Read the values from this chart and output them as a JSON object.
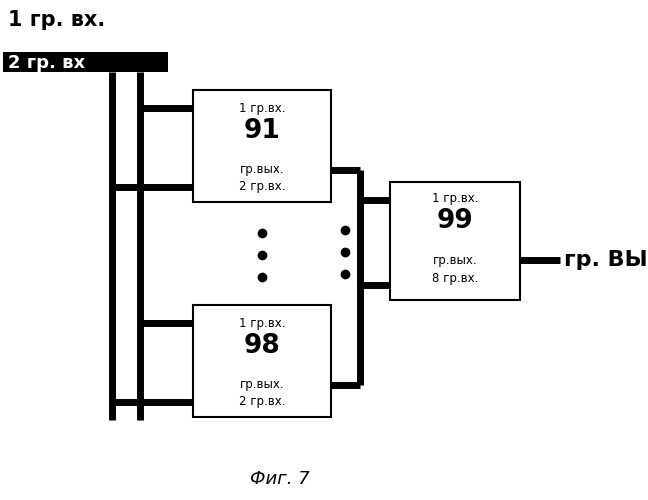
{
  "title": "Фиг. 7",
  "label_1gr_vx": "1 гр. вх.",
  "label_2gr_vx": "2 гр. вх",
  "label_gr_vyx": "гр. ВЫХ.",
  "box1_lines": [
    "1 гр.вх.",
    "91",
    "гр.вых.",
    "2 гр.вх."
  ],
  "box2_lines": [
    "1 гр.вх.",
    "98",
    "гр.вых.",
    "2 гр.вх."
  ],
  "box3_lines": [
    "1 гр.вх.",
    "99",
    "гр.вых.",
    "8 гр.вх."
  ],
  "lw_thick": 5,
  "lw_thin": 1.5,
  "bg_color": "#ffffff",
  "fg_color": "#000000"
}
